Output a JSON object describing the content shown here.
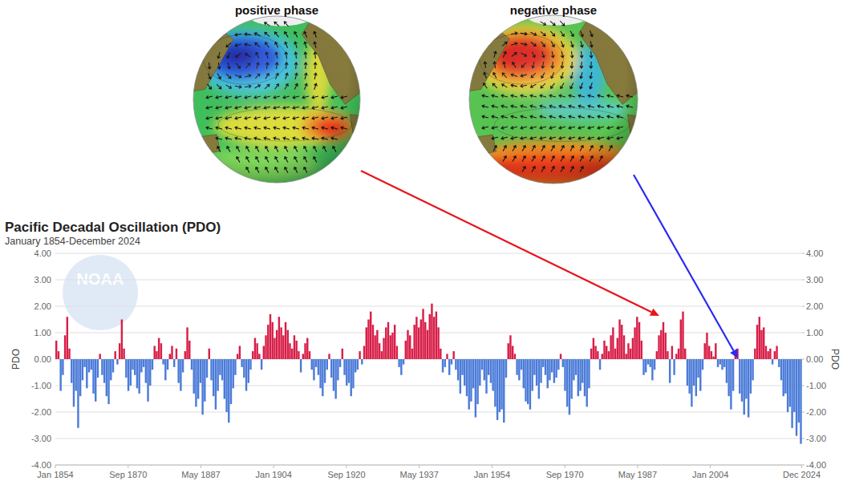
{
  "chart_data": {
    "type": "bar",
    "title": "Pacific Decadal Oscillation (PDO)",
    "subtitle": "January 1854-December 2024",
    "y_label": "PDO",
    "y2_label": "PDO",
    "color": {
      "positive": "#d81e48",
      "negative": "#4b7bd8"
    },
    "grid": true,
    "xlim": [
      1854,
      2025
    ],
    "xticks": [
      {
        "value": 1854,
        "label": "Jan 1854"
      },
      {
        "value": 1870.667,
        "label": "Sep 1870"
      },
      {
        "value": 1887.333,
        "label": "May 1887"
      },
      {
        "value": 1904,
        "label": "Jan 1904"
      },
      {
        "value": 1920.667,
        "label": "Sep 1920"
      },
      {
        "value": 1937.333,
        "label": "May 1937"
      },
      {
        "value": 1954,
        "label": "Jan 1954"
      },
      {
        "value": 1970.667,
        "label": "Sep 1970"
      },
      {
        "value": 1987.333,
        "label": "May 1987"
      },
      {
        "value": 2004,
        "label": "Jan 2004"
      },
      {
        "value": 2024.917,
        "label": "Dec 2024"
      }
    ],
    "ylim": [
      -4,
      4
    ],
    "yticks": [
      {
        "value": 4,
        "label": "4.00"
      },
      {
        "value": 3,
        "label": "3.00"
      },
      {
        "value": 2,
        "label": "2.00"
      },
      {
        "value": 1,
        "label": "1.00"
      },
      {
        "value": 0,
        "label": "0.00"
      },
      {
        "value": -1,
        "label": "-1.00"
      },
      {
        "value": -2,
        "label": "-2.00"
      },
      {
        "value": -3,
        "label": "-3.00"
      },
      {
        "value": -4,
        "label": "-4.00"
      }
    ],
    "y2lim": [
      -4,
      4
    ],
    "y2ticks": [
      {
        "value": 4,
        "label": "4.00"
      },
      {
        "value": 3,
        "label": "3.00"
      },
      {
        "value": 2,
        "label": "2.00"
      },
      {
        "value": 1,
        "label": "1.00"
      },
      {
        "value": 0,
        "label": "0.00"
      },
      {
        "value": -1,
        "label": "-1.00"
      },
      {
        "value": -2,
        "label": "-2.00"
      },
      {
        "value": -3,
        "label": "-3.00"
      },
      {
        "value": -4,
        "label": "-4.00"
      }
    ],
    "x": [
      1854,
      1854.5,
      1855,
      1855.5,
      1856,
      1856.5,
      1857,
      1857.5,
      1858,
      1858.5,
      1859,
      1859.5,
      1860,
      1860.5,
      1861,
      1861.5,
      1862,
      1862.5,
      1863,
      1863.5,
      1864,
      1864.5,
      1865,
      1865.5,
      1866,
      1866.5,
      1867,
      1867.5,
      1868,
      1868.5,
      1869,
      1869.5,
      1870,
      1870.5,
      1871,
      1871.5,
      1872,
      1872.5,
      1873,
      1873.5,
      1874,
      1874.5,
      1875,
      1875.5,
      1876,
      1876.5,
      1877,
      1877.5,
      1878,
      1878.5,
      1879,
      1879.5,
      1880,
      1880.5,
      1881,
      1881.5,
      1882,
      1882.5,
      1883,
      1883.5,
      1884,
      1884.5,
      1885,
      1885.5,
      1886,
      1886.5,
      1887,
      1887.5,
      1888,
      1888.5,
      1889,
      1889.5,
      1890,
      1890.5,
      1891,
      1891.5,
      1892,
      1892.5,
      1893,
      1893.5,
      1894,
      1894.5,
      1895,
      1895.5,
      1896,
      1896.5,
      1897,
      1897.5,
      1898,
      1898.5,
      1899,
      1899.5,
      1900,
      1900.5,
      1901,
      1901.5,
      1902,
      1902.5,
      1903,
      1903.5,
      1904,
      1904.5,
      1905,
      1905.5,
      1906,
      1906.5,
      1907,
      1907.5,
      1908,
      1908.5,
      1909,
      1909.5,
      1910,
      1910.5,
      1911,
      1911.5,
      1912,
      1912.5,
      1913,
      1913.5,
      1914,
      1914.5,
      1915,
      1915.5,
      1916,
      1916.5,
      1917,
      1917.5,
      1918,
      1918.5,
      1919,
      1919.5,
      1920,
      1920.5,
      1921,
      1921.5,
      1922,
      1922.5,
      1923,
      1923.5,
      1924,
      1924.5,
      1925,
      1925.5,
      1926,
      1926.5,
      1927,
      1927.5,
      1928,
      1928.5,
      1929,
      1929.5,
      1930,
      1930.5,
      1931,
      1931.5,
      1932,
      1932.5,
      1933,
      1933.5,
      1934,
      1934.5,
      1935,
      1935.5,
      1936,
      1936.5,
      1937,
      1937.5,
      1938,
      1938.5,
      1939,
      1939.5,
      1940,
      1940.5,
      1941,
      1941.5,
      1942,
      1942.5,
      1943,
      1943.5,
      1944,
      1944.5,
      1945,
      1945.5,
      1946,
      1946.5,
      1947,
      1947.5,
      1948,
      1948.5,
      1949,
      1949.5,
      1950,
      1950.5,
      1951,
      1951.5,
      1952,
      1952.5,
      1953,
      1953.5,
      1954,
      1954.5,
      1955,
      1955.5,
      1956,
      1956.5,
      1957,
      1957.5,
      1958,
      1958.5,
      1959,
      1959.5,
      1960,
      1960.5,
      1961,
      1961.5,
      1962,
      1962.5,
      1963,
      1963.5,
      1964,
      1964.5,
      1965,
      1965.5,
      1966,
      1966.5,
      1967,
      1967.5,
      1968,
      1968.5,
      1969,
      1969.5,
      1970,
      1970.5,
      1971,
      1971.5,
      1972,
      1972.5,
      1973,
      1973.5,
      1974,
      1974.5,
      1975,
      1975.5,
      1976,
      1976.5,
      1977,
      1977.5,
      1978,
      1978.5,
      1979,
      1979.5,
      1980,
      1980.5,
      1981,
      1981.5,
      1982,
      1982.5,
      1983,
      1983.5,
      1984,
      1984.5,
      1985,
      1985.5,
      1986,
      1986.5,
      1987,
      1987.5,
      1988,
      1988.5,
      1989,
      1989.5,
      1990,
      1990.5,
      1991,
      1991.5,
      1992,
      1992.5,
      1993,
      1993.5,
      1994,
      1994.5,
      1995,
      1995.5,
      1996,
      1996.5,
      1997,
      1997.5,
      1998,
      1998.5,
      1999,
      1999.5,
      2000,
      2000.5,
      2001,
      2001.5,
      2002,
      2002.5,
      2003,
      2003.5,
      2004,
      2004.5,
      2005,
      2005.5,
      2006,
      2006.5,
      2007,
      2007.5,
      2008,
      2008.5,
      2009,
      2009.5,
      2010,
      2010.5,
      2011,
      2011.5,
      2012,
      2012.5,
      2013,
      2013.5,
      2014,
      2014.5,
      2015,
      2015.5,
      2016,
      2016.5,
      2017,
      2017.5,
      2018,
      2018.5,
      2019,
      2019.5,
      2020,
      2020.5,
      2021,
      2021.5,
      2022,
      2022.5,
      2023,
      2023.5,
      2024,
      2024.5
    ],
    "values": [
      0.7,
      0.3,
      -1.2,
      -0.6,
      0.9,
      1.6,
      0.4,
      -0.9,
      -1.8,
      -1.2,
      -2.6,
      -1.4,
      -0.8,
      -0.3,
      -1.1,
      -0.5,
      -0.4,
      -1.3,
      -1.6,
      -0.7,
      0.2,
      -0.6,
      -0.9,
      -1.4,
      -1.7,
      -0.8,
      -0.5,
      0.3,
      -0.2,
      0.6,
      1.5,
      0.4,
      -0.7,
      -1.2,
      -1.0,
      -0.4,
      -0.6,
      -1.1,
      -1.3,
      -0.5,
      -0.3,
      -0.9,
      -1.6,
      -1.0,
      -0.4,
      0.5,
      0.3,
      0.8,
      0.6,
      -0.2,
      -0.8,
      -0.4,
      0.2,
      0.5,
      -0.3,
      0.4,
      -0.9,
      -1.2,
      -0.5,
      0.3,
      1.2,
      0.7,
      -0.4,
      -1.3,
      -1.8,
      -1.5,
      -0.9,
      -2.1,
      -1.6,
      -0.7,
      0.4,
      -0.8,
      -1.4,
      -1.9,
      -1.2,
      -0.6,
      -0.8,
      -1.5,
      -2.0,
      -2.4,
      -1.7,
      -1.1,
      -0.6,
      0.2,
      0.5,
      -0.3,
      -0.7,
      -1.2,
      -0.9,
      -0.4,
      0.3,
      0.8,
      0.6,
      0.2,
      -0.4,
      0.5,
      0.9,
      1.3,
      1.7,
      1.4,
      0.8,
      1.1,
      1.6,
      1.2,
      0.9,
      1.4,
      1.1,
      0.6,
      0.4,
      0.9,
      0.7,
      0.3,
      -0.5,
      0.2,
      0.6,
      0.8,
      0.3,
      -0.4,
      -0.8,
      -0.3,
      -0.6,
      -1.1,
      -1.4,
      -0.9,
      -0.4,
      0.2,
      -0.7,
      -1.2,
      -1.5,
      -0.8,
      -0.3,
      0.4,
      -0.6,
      -1.0,
      -0.9,
      -1.4,
      -1.1,
      -0.5,
      -0.4,
      0.3,
      -0.2,
      0.5,
      1.2,
      1.5,
      1.8,
      1.3,
      0.9,
      1.1,
      0.6,
      0.3,
      0.8,
      1.2,
      1.4,
      0.9,
      1.0,
      1.3,
      0.5,
      -0.3,
      -0.6,
      -0.2,
      0.7,
      1.1,
      0.9,
      0.4,
      1.3,
      1.6,
      1.2,
      1.5,
      1.9,
      1.4,
      1.1,
      1.7,
      2.1,
      1.6,
      1.8,
      1.2,
      0.4,
      -0.5,
      -0.3,
      0.2,
      -0.6,
      -0.2,
      0.3,
      -0.4,
      -0.8,
      -1.3,
      -0.6,
      -1.0,
      -1.4,
      -1.9,
      -1.6,
      -1.1,
      -2.2,
      -1.7,
      -1.0,
      -0.4,
      -0.8,
      -1.3,
      -0.6,
      -0.9,
      -1.2,
      -1.8,
      -2.3,
      -2.0,
      -1.9,
      -2.4,
      -0.7,
      0.6,
      0.9,
      0.5,
      0.2,
      -0.6,
      -0.8,
      -0.4,
      -1.1,
      -1.6,
      -1.7,
      -1.9,
      -1.2,
      -0.6,
      -1.0,
      -1.5,
      -0.9,
      -0.3,
      -0.6,
      -1.1,
      -0.8,
      -0.5,
      -0.9,
      -0.7,
      -0.4,
      0.2,
      -0.3,
      -1.2,
      -1.8,
      -2.1,
      -1.5,
      -0.8,
      -0.6,
      -1.4,
      -1.2,
      -0.9,
      -1.4,
      -1.8,
      -1.1,
      0.4,
      0.8,
      0.5,
      0.3,
      -0.4,
      0.2,
      0.7,
      0.5,
      0.3,
      0.9,
      1.2,
      0.4,
      0.8,
      1.5,
      1.3,
      0.9,
      0.2,
      0.6,
      0.4,
      0.8,
      1.2,
      1.6,
      1.4,
      0.7,
      -0.6,
      -0.5,
      -0.2,
      -0.3,
      -0.8,
      -0.4,
      0.3,
      0.9,
      1.1,
      1.4,
      1.0,
      0.3,
      -0.9,
      0.5,
      -0.6,
      0.2,
      0.4,
      1.5,
      1.8,
      0.4,
      -1.0,
      -1.3,
      -1.8,
      -1.0,
      -1.4,
      -0.7,
      -1.2,
      -0.4,
      0.6,
      1.0,
      0.5,
      0.3,
      0.1,
      0.6,
      -0.3,
      -0.2,
      -0.4,
      -0.3,
      -0.9,
      -1.4,
      -1.9,
      -1.2,
      0.2,
      0.4,
      -1.3,
      -1.6,
      -2.1,
      -1.5,
      -2.2,
      -1.3,
      -0.8,
      0.4,
      1.3,
      1.6,
      1.1,
      1.2,
      0.5,
      0.3,
      0.4,
      -0.2,
      0.3,
      0.5,
      -0.3,
      -0.8,
      -1.4,
      -1.3,
      -2.0,
      -1.8,
      -2.6,
      -2.0,
      -2.9,
      -2.4,
      -3.2
    ]
  },
  "maps": [
    {
      "title": "positive phase"
    },
    {
      "title": "negative phase"
    }
  ],
  "watermark": "NOAA"
}
